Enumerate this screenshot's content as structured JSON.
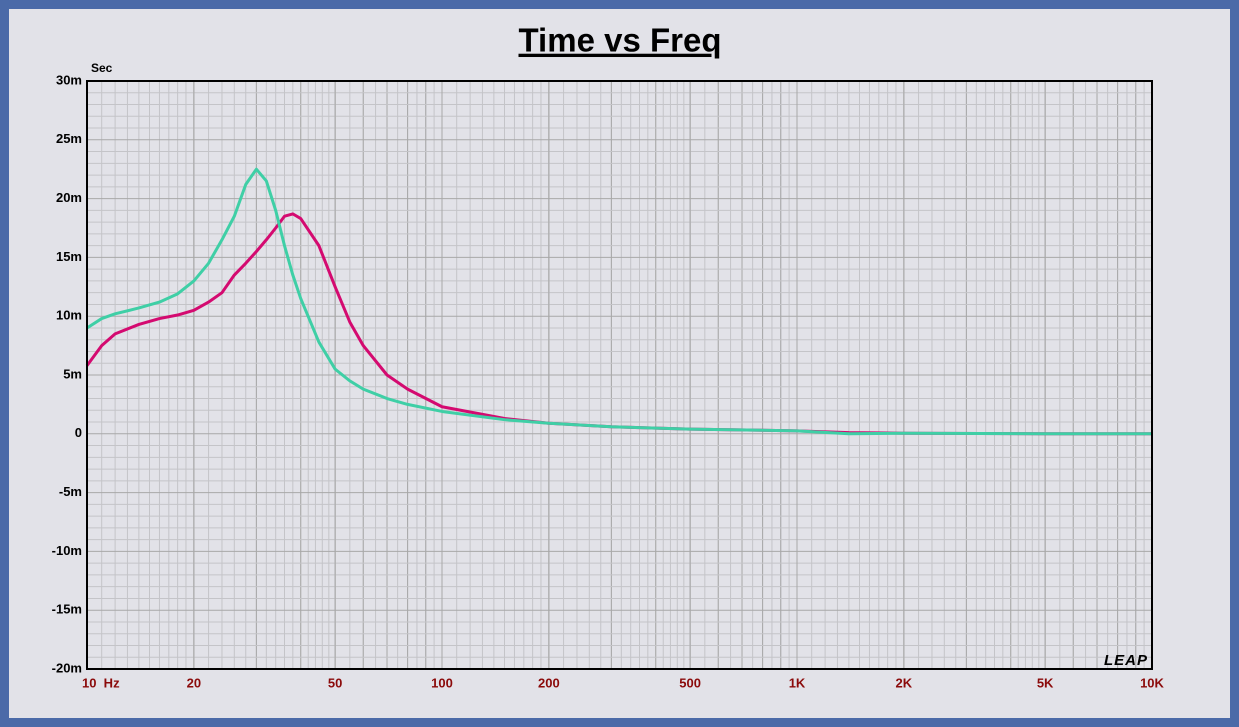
{
  "chart_data": {
    "type": "line",
    "title": "Time vs Freq",
    "y_label": "Sec",
    "logo": "LEAP",
    "x_log": true,
    "grid": true,
    "x": [
      10,
      11,
      12,
      14,
      16,
      18,
      20,
      22,
      24,
      26,
      28,
      30,
      32,
      34,
      36,
      38,
      40,
      45,
      50,
      55,
      60,
      70,
      80,
      100,
      150,
      200,
      300,
      500,
      1000,
      1400,
      2000,
      5000,
      10000
    ],
    "series": [
      {
        "color": "#d40a70",
        "values": [
          0.0058,
          0.0075,
          0.0085,
          0.0093,
          0.0098,
          0.0101,
          0.0105,
          0.0112,
          0.012,
          0.0135,
          0.0145,
          0.0155,
          0.0165,
          0.0175,
          0.0185,
          0.0187,
          0.0183,
          0.016,
          0.0125,
          0.0095,
          0.0075,
          0.005,
          0.0038,
          0.0023,
          0.0013,
          0.0009,
          0.0006,
          0.0004,
          0.00025,
          0.0001,
          5e-05,
          0,
          0
        ]
      },
      {
        "color": "#3fcfa6",
        "values": [
          0.009,
          0.0098,
          0.0102,
          0.0107,
          0.0112,
          0.0119,
          0.013,
          0.0145,
          0.0165,
          0.0185,
          0.0212,
          0.0225,
          0.0215,
          0.019,
          0.016,
          0.0135,
          0.0115,
          0.0078,
          0.0055,
          0.0045,
          0.0038,
          0.003,
          0.0025,
          0.0019,
          0.0012,
          0.0009,
          0.0006,
          0.0004,
          0.00025,
          0,
          5e-05,
          0,
          0
        ]
      }
    ],
    "xlim": [
      10,
      10000
    ],
    "xticks": [
      {
        "value": 10,
        "label": "10  Hz"
      },
      20,
      50,
      100,
      200,
      500,
      {
        "value": 1000,
        "label": "1K"
      },
      {
        "value": 2000,
        "label": "2K"
      },
      {
        "value": 5000,
        "label": "5K"
      },
      {
        "value": 10000,
        "label": "10K"
      }
    ],
    "ylim": [
      -0.02,
      0.03
    ],
    "yticks": [
      {
        "value": 0.03,
        "label": "30m"
      },
      {
        "value": 0.025,
        "label": "25m"
      },
      {
        "value": 0.02,
        "label": "20m"
      },
      {
        "value": 0.015,
        "label": "15m"
      },
      {
        "value": 0.01,
        "label": "10m"
      },
      {
        "value": 0.005,
        "label": "5m"
      },
      0,
      {
        "value": -0.005,
        "label": "-5m"
      },
      {
        "value": -0.01,
        "label": "-10m"
      },
      {
        "value": -0.015,
        "label": "-15m"
      },
      {
        "value": -0.02,
        "label": "-20m"
      }
    ]
  }
}
